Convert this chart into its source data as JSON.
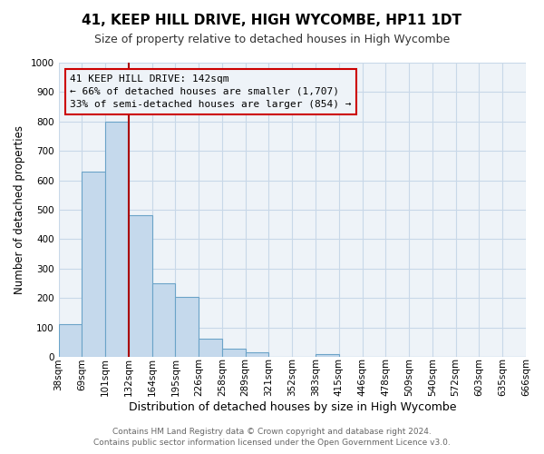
{
  "title": "41, KEEP HILL DRIVE, HIGH WYCOMBE, HP11 1DT",
  "subtitle": "Size of property relative to detached houses in High Wycombe",
  "xlabel": "Distribution of detached houses by size in High Wycombe",
  "ylabel": "Number of detached properties",
  "footer_lines": [
    "Contains HM Land Registry data © Crown copyright and database right 2024.",
    "Contains public sector information licensed under the Open Government Licence v3.0."
  ],
  "bin_labels": [
    "38sqm",
    "69sqm",
    "101sqm",
    "132sqm",
    "164sqm",
    "195sqm",
    "226sqm",
    "258sqm",
    "289sqm",
    "321sqm",
    "352sqm",
    "383sqm",
    "415sqm",
    "446sqm",
    "478sqm",
    "509sqm",
    "540sqm",
    "572sqm",
    "603sqm",
    "635sqm",
    "666sqm"
  ],
  "bar_values": [
    110,
    630,
    800,
    480,
    250,
    205,
    60,
    28,
    15,
    0,
    0,
    10,
    0,
    0,
    0,
    0,
    0,
    0,
    0,
    0
  ],
  "bar_color": "#c5d9ec",
  "bar_edge_color": "#6ba3c8",
  "bar_edge_width": 0.8,
  "vline_x_index": 3,
  "vline_color": "#aa0000",
  "annotation_line1": "41 KEEP HILL DRIVE: 142sqm",
  "annotation_line2": "← 66% of detached houses are smaller (1,707)",
  "annotation_line3": "33% of semi-detached houses are larger (854) →",
  "annotation_box_color": "#cc0000",
  "grid_color": "#c8d8e8",
  "background_color": "#ffffff",
  "plot_bg_color": "#eef3f8",
  "ylim": [
    0,
    1000
  ],
  "yticks": [
    0,
    100,
    200,
    300,
    400,
    500,
    600,
    700,
    800,
    900,
    1000
  ],
  "title_fontsize": 11,
  "subtitle_fontsize": 9,
  "xlabel_fontsize": 9,
  "ylabel_fontsize": 8.5,
  "tick_fontsize": 7.5,
  "footer_fontsize": 6.5,
  "annotation_fontsize": 8
}
